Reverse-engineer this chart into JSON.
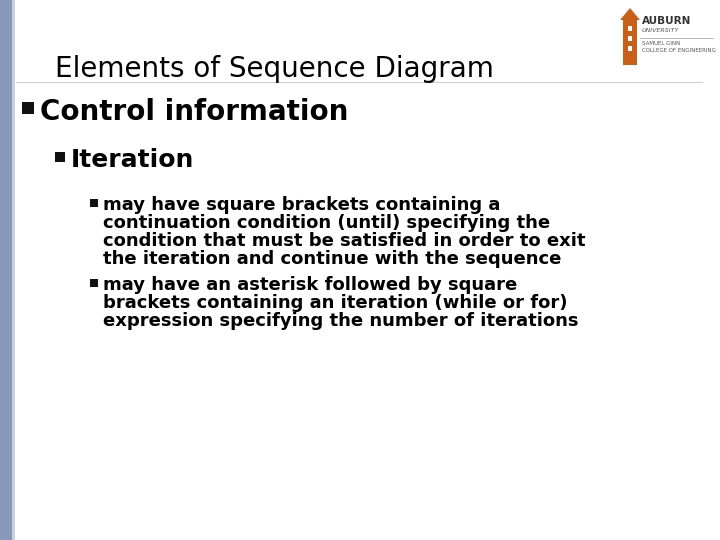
{
  "title": "Elements of Sequence Diagram",
  "title_fontsize": 20,
  "slide_bg": "#ffffff",
  "left_bar_color": "#8898b8",
  "text_color": "#000000",
  "bullet1": "Control information",
  "bullet1_fontsize": 20,
  "bullet2": "Iteration",
  "bullet2_fontsize": 18,
  "bullet3a_lines": [
    "may have square brackets containing a",
    "continuation condition (until) specifying the",
    "condition that must be satisfied in order to exit",
    "the iteration and continue with the sequence"
  ],
  "bullet3b_lines": [
    "may have an asterisk followed by square",
    "brackets containing an iteration (while or for)",
    "expression specifying the number of iterations"
  ],
  "bullet3_fontsize": 13,
  "auburn_text": "AUBURN",
  "university_text": "UNIVERSITY",
  "samuel_ginn_text": "SAMUEL GINN\nCOLLEGE OF ENGINEERING",
  "logo_color": "#c8601a",
  "logo_text_color": "#333333",
  "subtext_color": "#555555"
}
